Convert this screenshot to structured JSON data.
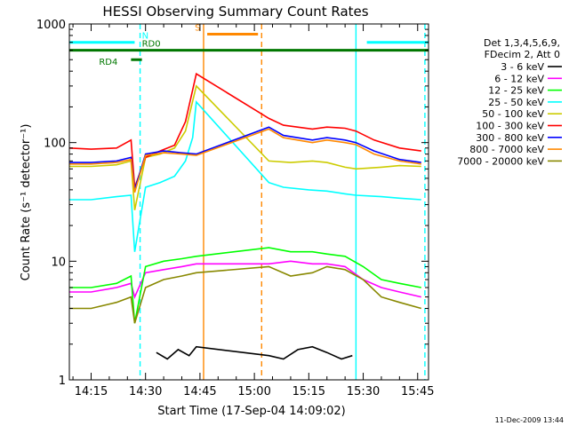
{
  "chart_data": {
    "type": "line",
    "title": "HESSI Observing Summary Count Rates",
    "xlabel": "Start Time (17-Sep-04 14:09:02)",
    "ylabel": "Count Rate (s⁻¹ detector⁻¹)",
    "yscale": "log",
    "xlim": [
      "14:09",
      "15:48"
    ],
    "ylim": [
      1,
      1000
    ],
    "x_ticks": [
      "14:15",
      "14:30",
      "14:45",
      "15:00",
      "15:15",
      "15:30",
      "15:45"
    ],
    "y_ticks": [
      "1",
      "10",
      "100",
      "1000"
    ],
    "legend_header": [
      "Det 1,3,4,5,6,9,",
      "FDecim 2, Att 0"
    ],
    "legend_placement": "right",
    "footer": "11-Dec-2009 13:44",
    "flags": [
      {
        "label": "N",
        "color": "#00ffff",
        "y": 700,
        "segments": [
          [
            "14:09",
            "14:27"
          ],
          [
            "15:31",
            "15:48"
          ]
        ]
      },
      {
        "label": "RD0",
        "color": "#007700",
        "y": 600,
        "segments": [
          [
            "14:09",
            "15:48"
          ]
        ]
      },
      {
        "label": "RD4",
        "color": "#007700",
        "y": 500,
        "segments": [
          [
            "14:26",
            "14:29"
          ]
        ]
      },
      {
        "label": "S",
        "color": "#ff8800",
        "y": 820,
        "segments": [
          [
            "14:47",
            "15:01"
          ]
        ]
      }
    ],
    "vlines": [
      {
        "x": "14:28.5",
        "color": "#00ffff",
        "style": "dashed"
      },
      {
        "x": "14:46",
        "color": "#ff8800",
        "style": "solid"
      },
      {
        "x": "15:02",
        "color": "#ff8800",
        "style": "dashed"
      },
      {
        "x": "15:28",
        "color": "#00ffff",
        "style": "solid"
      },
      {
        "x": "15:47",
        "color": "#00ffff",
        "style": "dashed"
      }
    ],
    "series": [
      {
        "name": "3 - 6 keV",
        "color": "#000000",
        "x": [
          "14:33",
          "14:36",
          "14:39",
          "14:42",
          "14:44",
          "15:04",
          "15:08",
          "15:12",
          "15:16",
          "15:20",
          "15:24",
          "15:27"
        ],
        "y": [
          1.7,
          1.5,
          1.8,
          1.6,
          1.9,
          1.6,
          1.5,
          1.8,
          1.9,
          1.7,
          1.5,
          1.6
        ]
      },
      {
        "name": "6 - 12 keV",
        "color": "#ff00ff",
        "x": [
          "14:09",
          "14:15",
          "14:22",
          "14:26",
          "14:27",
          "14:30",
          "14:35",
          "14:40",
          "14:44",
          "15:04",
          "15:10",
          "15:16",
          "15:20",
          "15:25",
          "15:30",
          "15:35",
          "15:40",
          "15:46"
        ],
        "y": [
          5.5,
          5.5,
          6,
          6.5,
          5,
          8,
          8.5,
          9,
          9.5,
          9.5,
          10,
          9.5,
          9.5,
          9,
          7,
          6,
          5.5,
          5
        ]
      },
      {
        "name": "12 - 25 keV",
        "color": "#00ff00",
        "x": [
          "14:09",
          "14:15",
          "14:22",
          "14:26",
          "14:27",
          "14:30",
          "14:35",
          "14:40",
          "14:44",
          "15:04",
          "15:10",
          "15:16",
          "15:20",
          "15:25",
          "15:30",
          "15:35",
          "15:40",
          "15:46"
        ],
        "y": [
          6,
          6,
          6.5,
          7.5,
          3,
          9,
          10,
          10.5,
          11,
          13,
          12,
          12,
          11.5,
          11,
          9,
          7,
          6.5,
          6
        ]
      },
      {
        "name": "25 - 50 keV",
        "color": "#00ffff",
        "x": [
          "14:09",
          "14:15",
          "14:22",
          "14:26",
          "14:27",
          "14:30",
          "14:34",
          "14:38",
          "14:41",
          "14:43",
          "14:44",
          "15:04",
          "15:08",
          "15:15",
          "15:20",
          "15:25",
          "15:28",
          "15:35",
          "15:40",
          "15:46"
        ],
        "y": [
          33,
          33,
          35,
          36,
          12,
          42,
          46,
          52,
          70,
          110,
          220,
          46,
          42,
          40,
          39,
          37,
          36,
          35,
          34,
          33
        ]
      },
      {
        "name": "50 - 100 keV",
        "color": "#cccc00",
        "x": [
          "14:09",
          "14:15",
          "14:22",
          "14:26",
          "14:27",
          "14:30",
          "14:34",
          "14:38",
          "14:41",
          "14:44",
          "15:04",
          "15:10",
          "15:16",
          "15:20",
          "15:25",
          "15:28",
          "15:35",
          "15:40",
          "15:46"
        ],
        "y": [
          63,
          63,
          65,
          70,
          27,
          75,
          80,
          90,
          125,
          300,
          70,
          68,
          70,
          68,
          62,
          60,
          62,
          64,
          63
        ]
      },
      {
        "name": "100 - 300 keV",
        "color": "#ff0000",
        "x": [
          "14:09",
          "14:15",
          "14:22",
          "14:26",
          "14:27",
          "14:30",
          "14:34",
          "14:38",
          "14:41",
          "14:44",
          "15:04",
          "15:08",
          "15:16",
          "15:20",
          "15:25",
          "15:28",
          "15:33",
          "15:40",
          "15:46"
        ],
        "y": [
          90,
          88,
          90,
          105,
          42,
          75,
          85,
          95,
          150,
          380,
          160,
          140,
          130,
          135,
          132,
          125,
          105,
          90,
          85
        ]
      },
      {
        "name": "300 - 800 keV",
        "color": "#0000ff",
        "x": [
          "14:09",
          "14:15",
          "14:22",
          "14:26",
          "14:27",
          "14:30",
          "14:35",
          "14:40",
          "14:44",
          "15:04",
          "15:08",
          "15:16",
          "15:20",
          "15:25",
          "15:28",
          "15:33",
          "15:40",
          "15:46"
        ],
        "y": [
          68,
          68,
          70,
          75,
          40,
          80,
          85,
          82,
          80,
          135,
          115,
          105,
          110,
          105,
          100,
          85,
          72,
          68
        ]
      },
      {
        "name": "800 - 7000 keV",
        "color": "#ff8800",
        "x": [
          "14:09",
          "14:15",
          "14:22",
          "14:26",
          "14:27",
          "14:30",
          "14:35",
          "14:40",
          "14:44",
          "15:04",
          "15:08",
          "15:16",
          "15:20",
          "15:25",
          "15:28",
          "15:33",
          "15:40",
          "15:46"
        ],
        "y": [
          66,
          66,
          68,
          72,
          38,
          78,
          82,
          80,
          78,
          130,
          110,
          100,
          105,
          100,
          96,
          80,
          70,
          66
        ]
      },
      {
        "name": "7000 - 20000 keV",
        "color": "#888800",
        "x": [
          "14:09",
          "14:15",
          "14:22",
          "14:26",
          "14:27",
          "14:30",
          "14:35",
          "14:40",
          "14:44",
          "15:04",
          "15:10",
          "15:16",
          "15:20",
          "15:25",
          "15:30",
          "15:35",
          "15:40",
          "15:46"
        ],
        "y": [
          4,
          4,
          4.5,
          5,
          3,
          6,
          7,
          7.5,
          8,
          9,
          7.5,
          8,
          9,
          8.5,
          7,
          5,
          4.5,
          4
        ]
      }
    ]
  }
}
